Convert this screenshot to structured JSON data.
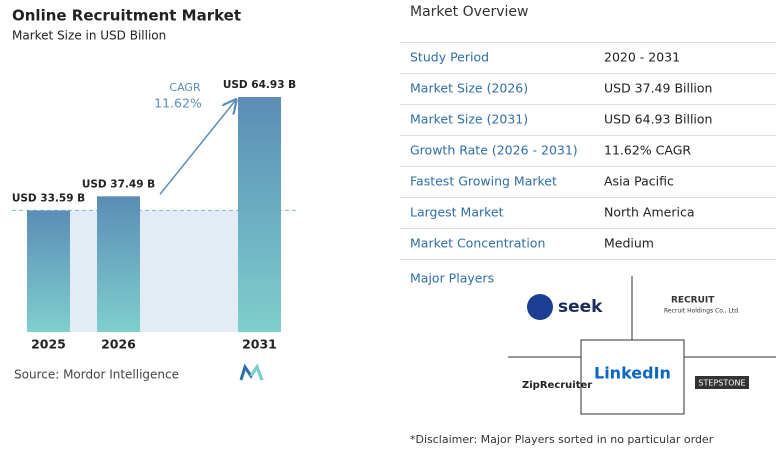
{
  "chart_data": {
    "type": "bar",
    "title": "Online Recruitment Market",
    "subtitle": "Market Size in USD Billion",
    "categories": [
      "2025",
      "2026",
      "2031"
    ],
    "values": [
      33.59,
      37.49,
      64.93
    ],
    "value_labels": [
      "USD 33.59 B",
      "USD 37.49 B",
      "USD 64.93 B"
    ],
    "color_top": "#5b8db6",
    "color_bottom": "#7fcfcd",
    "annotation_label": "CAGR",
    "annotation_value": "11.62%",
    "source": "Source: Mordor Intelligence"
  },
  "market_overview": {
    "title": "Market Overview",
    "rows": [
      [
        "Study Period",
        "2020 - 2031"
      ],
      [
        "Market Size (2026)",
        "USD 37.49 Billion"
      ],
      [
        "Market Size (2031)",
        "USD 64.93 Billion"
      ],
      [
        "Growth Rate (2026 - 2031)",
        "11.62% CAGR"
      ],
      [
        "Fastest Growing Market",
        "Asia Pacific"
      ],
      [
        "Largest Market",
        "North America"
      ],
      [
        "Market Concentration",
        "Medium"
      ]
    ]
  },
  "major_players": {
    "title": "Major Players",
    "players": [
      "seek",
      "RECRUIT",
      "Recruit Holdings Co., Ltd.",
      "ZipRecruiter",
      "LinkedIn",
      "STEPSTONE"
    ]
  },
  "disclaimer": "*Disclaimer: Major Players sorted in no particular order"
}
